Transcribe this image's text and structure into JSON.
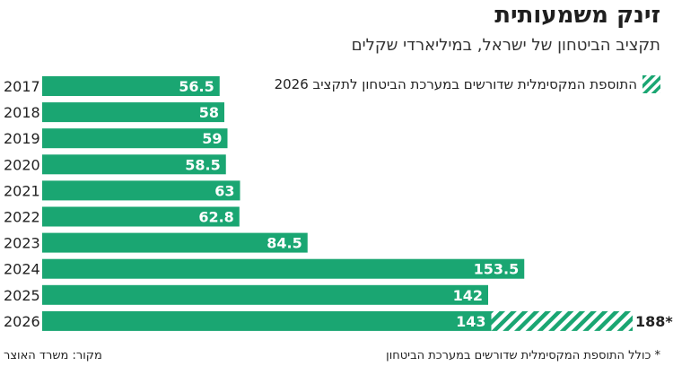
{
  "title": "זינק משמעותית",
  "subtitle": "תקציב הביטחון של ישראל, במיליארדי שקלים",
  "legend_label": "התוספת המקסימלית שדורשים במערכת הביטחון לתקציב 2026",
  "footnote": "* כולל התוספת המקסימלית שדורשים במערכת הביטחון",
  "source": "מקור: משרד האוצר",
  "colors": {
    "bar": "#1aa672",
    "hatch_bg": "#ffffff",
    "label": "#ffffff"
  },
  "chart_data": {
    "type": "bar",
    "orientation": "horizontal",
    "categories": [
      "2017",
      "2018",
      "2019",
      "2020",
      "2021",
      "2022",
      "2023",
      "2024",
      "2025",
      "2026"
    ],
    "series": [
      {
        "values": [
          56.5,
          58,
          59,
          58.5,
          63,
          62.8,
          84.5,
          153.5,
          142,
          143
        ]
      }
    ],
    "value_labels": [
      "56.5",
      "58",
      "59",
      "58.5",
      "63",
      "62.8",
      "84.5",
      "153.5",
      "142",
      "143"
    ],
    "extension": {
      "category": "2026",
      "total": 188,
      "total_label": "188*"
    },
    "xlim": [
      0,
      188
    ],
    "grid": false
  }
}
